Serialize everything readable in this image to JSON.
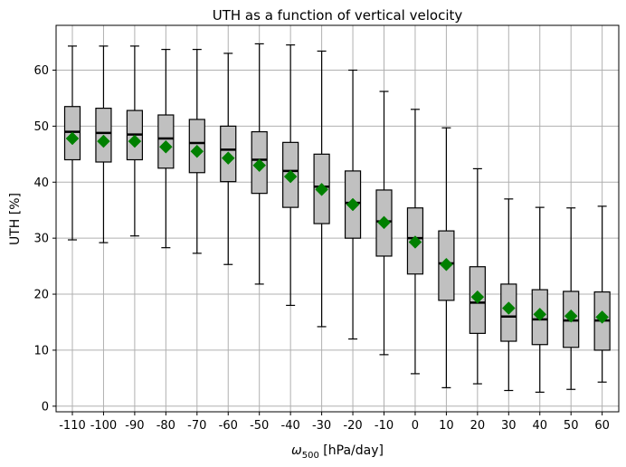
{
  "chart_data": {
    "type": "boxplot",
    "title": "UTH as a function of vertical velocity",
    "xlabel_symbol": "ω",
    "xlabel_subscript": "500",
    "xlabel_unit": " [hPa/day]",
    "ylabel": "UTH [%]",
    "ylim": [
      -1,
      68
    ],
    "yticks": [
      0,
      10,
      20,
      30,
      40,
      50,
      60
    ],
    "grid": true,
    "categories": [
      "-110",
      "-100",
      "-90",
      "-80",
      "-70",
      "-60",
      "-50",
      "-40",
      "-30",
      "-20",
      "-10",
      "0",
      "10",
      "20",
      "30",
      "40",
      "50",
      "60"
    ],
    "series": [
      {
        "whisker_low": [
          29.7,
          29.2,
          30.4,
          28.3,
          27.3,
          25.3,
          21.8,
          18.0,
          14.2,
          12.0,
          9.2,
          5.8,
          3.3,
          4.0,
          2.8,
          2.5,
          3.0,
          4.3
        ],
        "q1": [
          44.0,
          43.6,
          44.0,
          42.5,
          41.7,
          40.1,
          38.0,
          35.5,
          32.6,
          30.0,
          26.8,
          23.6,
          18.9,
          13.0,
          11.6,
          11.0,
          10.5,
          10.0
        ],
        "median": [
          49.0,
          48.8,
          48.5,
          47.8,
          47.0,
          45.8,
          44.0,
          42.0,
          39.2,
          36.3,
          33.0,
          30.0,
          25.5,
          18.5,
          16.0,
          15.5,
          15.3,
          15.3
        ],
        "q3": [
          53.5,
          53.2,
          52.8,
          52.0,
          51.2,
          50.0,
          49.0,
          47.1,
          45.0,
          42.0,
          38.6,
          35.4,
          31.3,
          24.9,
          21.8,
          20.8,
          20.5,
          20.4
        ],
        "whisker_high": [
          64.3,
          64.3,
          64.3,
          63.7,
          63.7,
          63.0,
          64.7,
          64.5,
          63.4,
          60.0,
          56.2,
          53.0,
          49.7,
          42.4,
          37.0,
          35.5,
          35.4,
          35.7
        ],
        "mean": [
          47.8,
          47.3,
          47.3,
          46.3,
          45.5,
          44.3,
          43.0,
          41.0,
          38.7,
          36.0,
          32.8,
          29.3,
          25.3,
          19.5,
          17.5,
          16.4,
          16.1,
          15.9
        ]
      }
    ],
    "colors": {
      "box_fill": "#c0c0c0",
      "box_edge": "#000000",
      "median": "#000000",
      "mean_marker": "#008000",
      "grid": "#b0b0b0"
    }
  }
}
